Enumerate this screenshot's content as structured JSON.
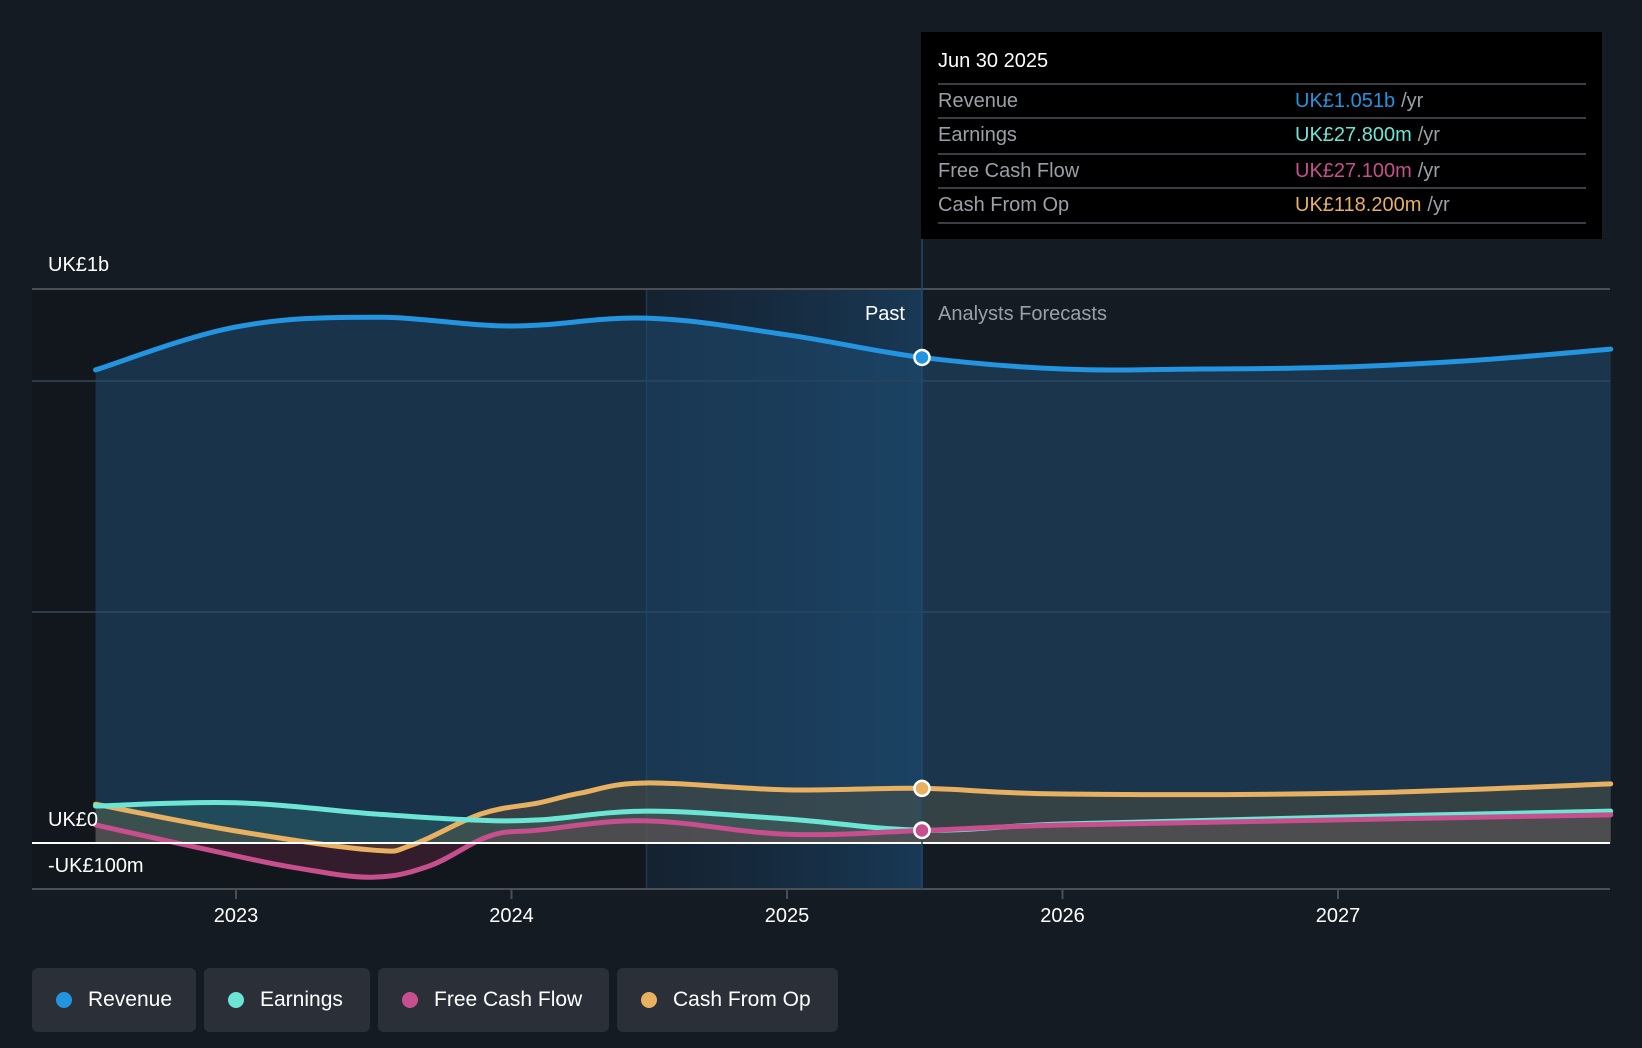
{
  "tooltip": {
    "date": "Jun 30 2025",
    "rows": [
      {
        "label": "Revenue",
        "value": "UK£1.051b",
        "unit": "/yr",
        "color": "#2394df"
      },
      {
        "label": "Earnings",
        "value": "UK£27.800m",
        "unit": "/yr",
        "color": "#6ce5d5"
      },
      {
        "label": "Free Cash Flow",
        "value": "UK£27.100m",
        "unit": "/yr",
        "color": "#c84f8e"
      },
      {
        "label": "Cash From Op",
        "value": "UK£118.200m",
        "unit": "/yr",
        "color": "#e8b061"
      }
    ]
  },
  "legend": [
    {
      "label": "Revenue",
      "color": "#2394df"
    },
    {
      "label": "Earnings",
      "color": "#6ce5d5"
    },
    {
      "label": "Free Cash Flow",
      "color": "#c84f8e"
    },
    {
      "label": "Cash From Op",
      "color": "#e8b061"
    }
  ],
  "chart_data": {
    "type": "line",
    "title": "",
    "xlabel": "",
    "ylabel": "",
    "x_range": [
      2022.49,
      2027.99
    ],
    "ylim": [
      -100,
      1200
    ],
    "y_unit": "UK£ millions",
    "y_tick_labels": [
      {
        "value": 1200,
        "label": "UK£1b"
      },
      {
        "value": 0,
        "label": "UK£0"
      },
      {
        "value": -100,
        "label": "-UK£100m"
      }
    ],
    "gridlines": [
      1200,
      1000,
      500,
      0,
      -100
    ],
    "x_ticks": [
      {
        "value": 2023,
        "label": "2023"
      },
      {
        "value": 2024,
        "label": "2024"
      },
      {
        "value": 2025,
        "label": "2025"
      },
      {
        "value": 2026,
        "label": "2026"
      },
      {
        "value": 2027,
        "label": "2027"
      }
    ],
    "divider_x": 2025.49,
    "highlight_start_x": 2024.49,
    "past_label": "Past",
    "forecast_label": "Analysts Forecasts",
    "legend_position": "bottom-left",
    "series": [
      {
        "name": "Revenue",
        "color": "#2394df",
        "points": [
          [
            2022.49,
            1024
          ],
          [
            2023.0,
            1117
          ],
          [
            2023.5,
            1138
          ],
          [
            2024.0,
            1119
          ],
          [
            2024.49,
            1136
          ],
          [
            2025.0,
            1100
          ],
          [
            2025.49,
            1051
          ],
          [
            2026.0,
            1026
          ],
          [
            2026.5,
            1026
          ],
          [
            2027.0,
            1030
          ],
          [
            2027.5,
            1045
          ],
          [
            2027.99,
            1069
          ]
        ]
      },
      {
        "name": "Earnings",
        "color": "#6ce5d5",
        "points": [
          [
            2022.49,
            80
          ],
          [
            2023.0,
            87
          ],
          [
            2023.5,
            63
          ],
          [
            2023.85,
            50
          ],
          [
            2024.1,
            50
          ],
          [
            2024.49,
            69
          ],
          [
            2025.0,
            52
          ],
          [
            2025.49,
            27.8
          ],
          [
            2026.0,
            41
          ],
          [
            2027.0,
            56
          ],
          [
            2027.99,
            69
          ]
        ]
      },
      {
        "name": "Free Cash Flow",
        "color": "#c84f8e",
        "points": [
          [
            2022.49,
            39
          ],
          [
            2023.0,
            -28
          ],
          [
            2023.22,
            -54
          ],
          [
            2023.49,
            -74
          ],
          [
            2023.7,
            -50
          ],
          [
            2023.92,
            15
          ],
          [
            2024.1,
            28
          ],
          [
            2024.49,
            48
          ],
          [
            2025.0,
            19
          ],
          [
            2025.49,
            27.1
          ],
          [
            2026.0,
            39
          ],
          [
            2027.0,
            50
          ],
          [
            2027.99,
            61
          ]
        ]
      },
      {
        "name": "Cash From Op",
        "color": "#e8b061",
        "points": [
          [
            2022.49,
            84
          ],
          [
            2023.0,
            26
          ],
          [
            2023.49,
            -15
          ],
          [
            2023.64,
            -4
          ],
          [
            2023.89,
            63
          ],
          [
            2024.1,
            87
          ],
          [
            2024.25,
            108
          ],
          [
            2024.49,
            130
          ],
          [
            2025.0,
            115
          ],
          [
            2025.49,
            118.2
          ],
          [
            2026.0,
            106
          ],
          [
            2027.05,
            108
          ],
          [
            2027.99,
            128
          ]
        ]
      }
    ]
  }
}
